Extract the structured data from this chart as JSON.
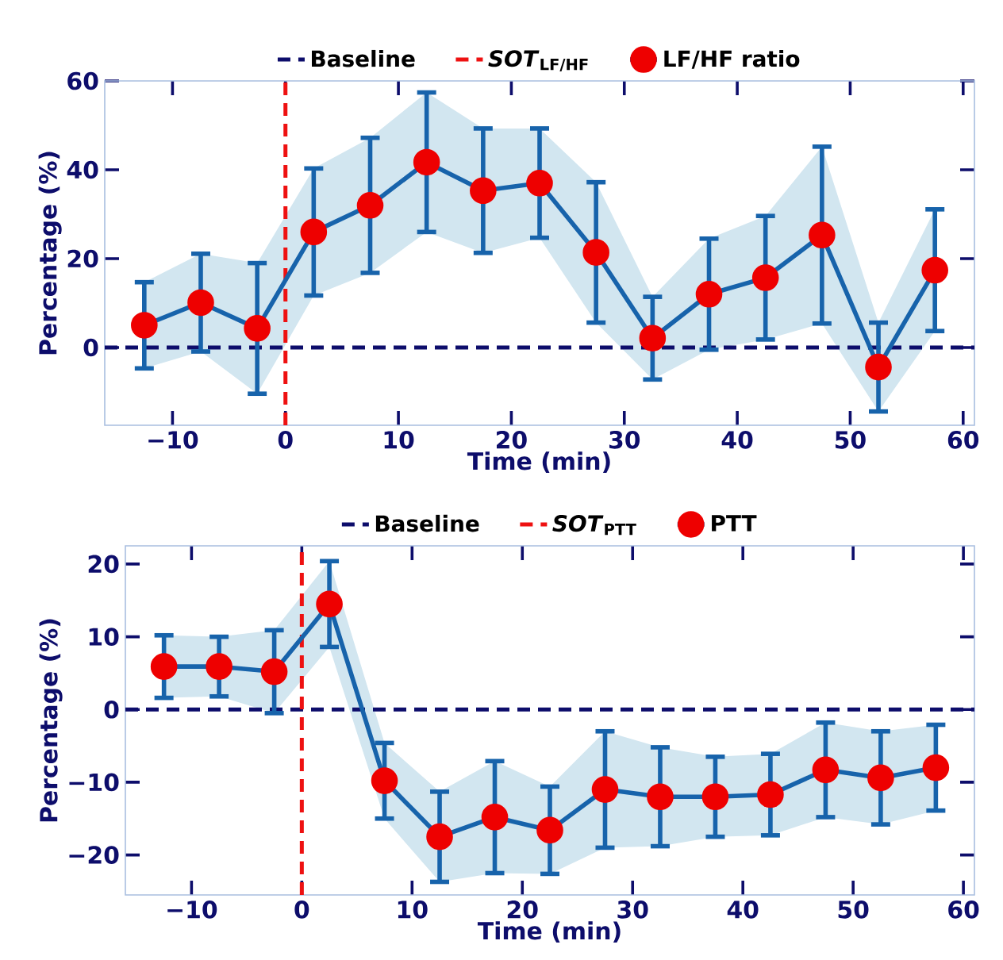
{
  "chart_data": [
    {
      "type": "line",
      "xlabel": "Time (min)",
      "ylabel": "Percentage (%)",
      "legend": "top",
      "marker": "circle",
      "line_style": "solid",
      "x": [
        -12.5,
        -7.5,
        -2.5,
        2.5,
        7.5,
        12.5,
        17.5,
        22.5,
        27.5,
        32.5,
        37.5,
        42.5,
        47.5,
        52.5,
        57.5
      ],
      "xlim": [
        -16,
        61
      ],
      "ylim": [
        -17.5,
        60
      ],
      "xticks": [
        {
          "value": -10,
          "label": "−10"
        },
        0,
        10,
        20,
        30,
        40,
        50,
        60
      ],
      "yticks": [
        0,
        20,
        40,
        60
      ],
      "ref_lines": [
        {
          "axis": "y",
          "value": 0,
          "label": "Baseline",
          "color": "#0d0d6b",
          "line_style": "dashed"
        },
        {
          "axis": "x",
          "value": 0,
          "label": "*SOT*$_{LF/HF}$",
          "color": "#ee1111",
          "line_style": "dashed"
        }
      ],
      "series": [
        {
          "name": "LF/HF ratio",
          "color": "#1763ab",
          "values": [
            5,
            10.1,
            4.3,
            26,
            32,
            41.7,
            35.3,
            37,
            21.4,
            2.1,
            12,
            15.7,
            25.3,
            -4.4,
            17.4
          ],
          "errors": [
            9.7,
            11,
            14.7,
            14.3,
            15.2,
            15.7,
            14,
            12.3,
            15.8,
            9.3,
            12.5,
            13.9,
            19.9,
            10,
            13.7
          ],
          "lower": [
            -4.7,
            -0.9,
            -10.4,
            11.7,
            16.8,
            26,
            21.3,
            24.7,
            5.6,
            -7.2,
            -0.5,
            1.8,
            5.4,
            -14.4,
            3.7
          ],
          "upper": [
            14.7,
            21.1,
            19,
            40.3,
            47.2,
            57.4,
            49.3,
            49.3,
            37.2,
            11.4,
            24.5,
            29.6,
            45.2,
            5.6,
            31.1
          ]
        }
      ]
    },
    {
      "type": "line",
      "xlabel": "Time (min)",
      "ylabel": "Percentage (%)",
      "legend": "top",
      "marker": "circle",
      "line_style": "solid",
      "x": [
        -12.5,
        -7.5,
        -2.5,
        2.5,
        7.5,
        12.5,
        17.5,
        22.5,
        27.5,
        32.5,
        37.5,
        42.5,
        47.5,
        52.5,
        57.5
      ],
      "xlim": [
        -16,
        61
      ],
      "ylim": [
        -25.5,
        22.5
      ],
      "xticks": [
        {
          "value": -10,
          "label": "−10"
        },
        0,
        10,
        20,
        30,
        40,
        50,
        60
      ],
      "yticks": [
        {
          "value": -20,
          "label": "−20"
        },
        {
          "value": -10,
          "label": "−10"
        },
        0,
        10,
        20
      ],
      "ref_lines": [
        {
          "axis": "y",
          "value": 0,
          "label": "Baseline",
          "color": "#0d0d6b",
          "line_style": "dashed"
        },
        {
          "axis": "x",
          "value": 0,
          "label": "*SOT*$_{PTT}$",
          "color": "#ee1111",
          "line_style": "dashed"
        }
      ],
      "series": [
        {
          "name": "PTT",
          "color": "#1763ab",
          "values": [
            5.9,
            5.9,
            5.2,
            14.5,
            -9.8,
            -17.5,
            -14.8,
            -16.6,
            -11,
            -12,
            -12,
            -11.7,
            -8.3,
            -9.4,
            -8
          ],
          "errors": [
            4.3,
            4.1,
            5.7,
            5.9,
            5.2,
            6.2,
            7.7,
            6,
            8,
            6.8,
            5.5,
            5.6,
            6.5,
            6.4,
            5.9
          ],
          "lower": [
            1.6,
            1.8,
            -0.5,
            8.6,
            -15,
            -23.7,
            -22.5,
            -22.6,
            -19,
            -18.8,
            -17.5,
            -17.3,
            -14.8,
            -15.8,
            -13.9
          ],
          "upper": [
            10.2,
            10,
            10.9,
            20.4,
            -4.6,
            -11.3,
            -7.1,
            -10.6,
            -3,
            -5.2,
            -6.5,
            -6.1,
            -1.8,
            -3,
            -2.1
          ]
        }
      ]
    }
  ]
}
